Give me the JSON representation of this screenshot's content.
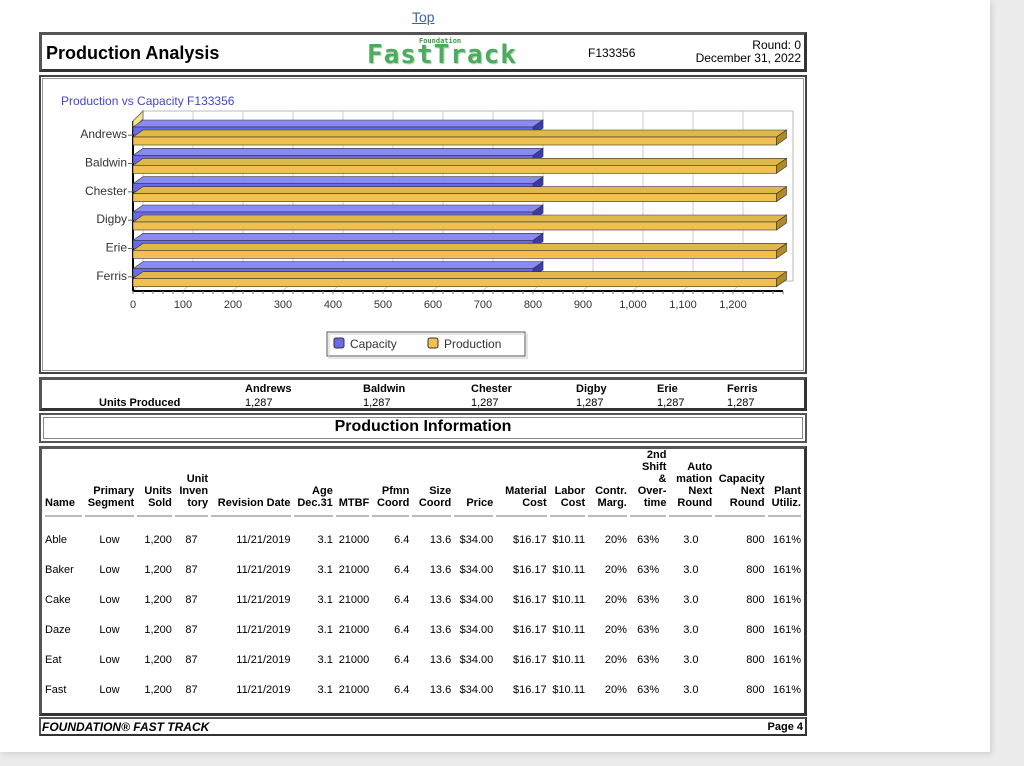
{
  "nav": {
    "top_link": "Top"
  },
  "header": {
    "title": "Production Analysis",
    "logo_small": "Foundation",
    "logo_big": "FastTrack",
    "company_code": "F133356",
    "round": "Round: 0",
    "date": "December 31, 2022"
  },
  "colors": {
    "capacity": "#6a6ae8",
    "production": "#f0c050",
    "chart_title": "#4444cc"
  },
  "chart": {
    "title": "Production vs Capacity  F133356",
    "legend": [
      "Capacity",
      "Production"
    ],
    "x_ticks": [
      "0",
      "100",
      "200",
      "300",
      "400",
      "500",
      "600",
      "700",
      "800",
      "900",
      "1,000",
      "1,100",
      "1,200"
    ]
  },
  "chart_data": {
    "type": "bar",
    "orientation": "horizontal",
    "title": "Production vs Capacity F133356",
    "categories": [
      "Andrews",
      "Baldwin",
      "Chester",
      "Digby",
      "Erie",
      "Ferris"
    ],
    "series": [
      {
        "name": "Capacity",
        "values": [
          800,
          800,
          800,
          800,
          800,
          800
        ]
      },
      {
        "name": "Production",
        "values": [
          1287,
          1287,
          1287,
          1287,
          1287,
          1287
        ]
      }
    ],
    "xlabel": "",
    "ylabel": "",
    "xlim": [
      0,
      1300
    ],
    "x_ticks": [
      0,
      100,
      200,
      300,
      400,
      500,
      600,
      700,
      800,
      900,
      1000,
      1100,
      1200
    ],
    "grid": true,
    "legend_position": "bottom"
  },
  "units_produced": {
    "label": "Units Produced",
    "companies": [
      {
        "name": "Andrews",
        "value": "1,287"
      },
      {
        "name": "Baldwin",
        "value": "1,287"
      },
      {
        "name": "Chester",
        "value": "1,287"
      },
      {
        "name": "Digby",
        "value": "1,287"
      },
      {
        "name": "Erie",
        "value": "1,287"
      },
      {
        "name": "Ferris",
        "value": "1,287"
      }
    ]
  },
  "production_info": {
    "title": "Production Information",
    "columns": [
      "Name",
      "Primary Segment",
      "Units Sold",
      "Unit Inven tory",
      "Revision Date",
      "Age Dec.31",
      "MTBF",
      "Pfmn Coord",
      "Size Coord",
      "Price",
      "Material Cost",
      "Labor Cost",
      "Contr. Marg.",
      "2nd Shift & Over- time",
      "Auto mation Next Round",
      "Capacity Next Round",
      "Plant Utiliz."
    ],
    "rows": [
      [
        "Able",
        "Low",
        "1,200",
        "87",
        "11/21/2019",
        "3.1",
        "21000",
        "6.4",
        "13.6",
        "$34.00",
        "$16.17",
        "$10.11",
        "20%",
        "63%",
        "3.0",
        "800",
        "161%"
      ],
      [
        "Baker",
        "Low",
        "1,200",
        "87",
        "11/21/2019",
        "3.1",
        "21000",
        "6.4",
        "13.6",
        "$34.00",
        "$16.17",
        "$10.11",
        "20%",
        "63%",
        "3.0",
        "800",
        "161%"
      ],
      [
        "Cake",
        "Low",
        "1,200",
        "87",
        "11/21/2019",
        "3.1",
        "21000",
        "6.4",
        "13.6",
        "$34.00",
        "$16.17",
        "$10.11",
        "20%",
        "63%",
        "3.0",
        "800",
        "161%"
      ],
      [
        "Daze",
        "Low",
        "1,200",
        "87",
        "11/21/2019",
        "3.1",
        "21000",
        "6.4",
        "13.6",
        "$34.00",
        "$16.17",
        "$10.11",
        "20%",
        "63%",
        "3.0",
        "800",
        "161%"
      ],
      [
        "Eat",
        "Low",
        "1,200",
        "87",
        "11/21/2019",
        "3.1",
        "21000",
        "6.4",
        "13.6",
        "$34.00",
        "$16.17",
        "$10.11",
        "20%",
        "63%",
        "3.0",
        "800",
        "161%"
      ],
      [
        "Fast",
        "Low",
        "1,200",
        "87",
        "11/21/2019",
        "3.1",
        "21000",
        "6.4",
        "13.6",
        "$34.00",
        "$16.17",
        "$10.11",
        "20%",
        "63%",
        "3.0",
        "800",
        "161%"
      ]
    ]
  },
  "footer": {
    "left": "FOUNDATION® FAST TRACK",
    "right": "Page 4"
  }
}
